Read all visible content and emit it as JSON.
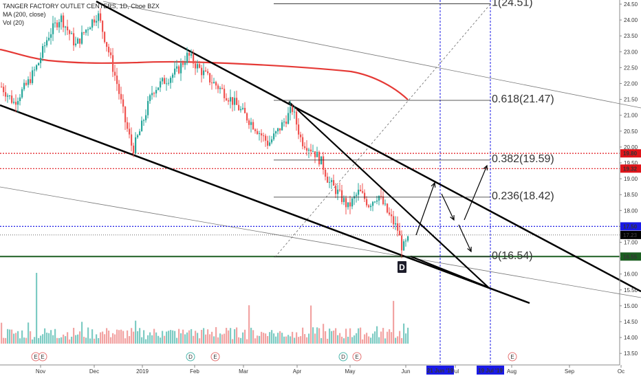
{
  "legend": {
    "title": "TANGER FACTORY OUTLET CENTERS, 1D, Cboe BZX",
    "ma": "MA (200, close)",
    "vol": "Vol (20)"
  },
  "colors": {
    "up": "#26a69a",
    "down": "#ef5350",
    "ma": "#e53935",
    "vol_up": "#7dcbc3",
    "vol_down": "#f2a3a2",
    "blue": "#1a1ae6",
    "red_line": "#e0141a",
    "green_line": "#1b5e20"
  },
  "chart_data": {
    "type": "candlestick",
    "y_ticks": [
      "24.50",
      "24.00",
      "23.50",
      "23.00",
      "22.50",
      "22.00",
      "21.50",
      "21.00",
      "20.50",
      "20.00",
      "19.50",
      "19.00",
      "18.50",
      "18.00",
      "17.50",
      "17.00",
      "16.50",
      "16.00",
      "15.50",
      "15.00",
      "14.50",
      "14.00",
      "13.50"
    ],
    "x_ticks": [
      "Nov",
      "Dec",
      "2019",
      "Feb",
      "Mar",
      "Apr",
      "May",
      "Jun",
      "Jul",
      "Aug",
      "Sep",
      "Oc"
    ],
    "price_badges": [
      {
        "label": "19.80",
        "value": 19.8,
        "color": "#e0141a"
      },
      {
        "label": "19.32",
        "value": 19.32,
        "color": "#e0141a"
      },
      {
        "label": "17.50",
        "value": 17.5,
        "color": "#1a1ae6"
      },
      {
        "label": "17.23",
        "value": 17.23,
        "color": "#000000"
      },
      {
        "label": "16.55",
        "value": 16.55,
        "color": "#1b5e20"
      }
    ],
    "date_badges": [
      {
        "label": "21 Jun '19"
      },
      {
        "label": "19 Jul '19"
      }
    ],
    "fib_levels": [
      {
        "label": "1(24.51)",
        "value": 24.51
      },
      {
        "label": "0.618(21.47)",
        "value": 21.47
      },
      {
        "label": "0.382(19.59)",
        "value": 19.59
      },
      {
        "label": "0.236(18.42)",
        "value": 18.42
      },
      {
        "label": "0(16.54)",
        "value": 16.54
      }
    ],
    "annotation": "D",
    "events": [
      "E",
      "E",
      "D",
      "E",
      "D",
      "E",
      "E"
    ]
  }
}
